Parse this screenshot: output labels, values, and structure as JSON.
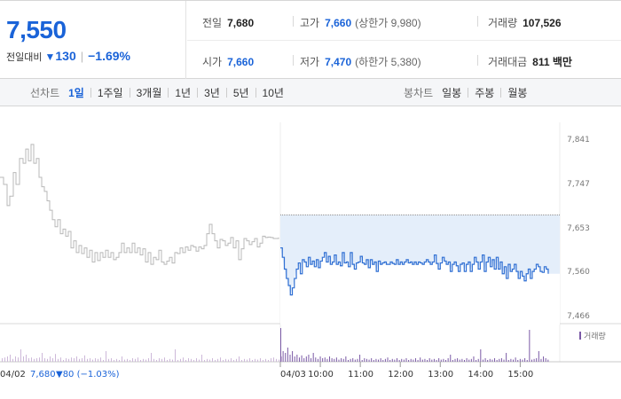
{
  "quote": {
    "price": "7,550",
    "change_label": "전일대비",
    "change_arrow": "▼",
    "change_abs": "130",
    "change_pct": "−1.69%",
    "stats": {
      "prev_close": {
        "label": "전일",
        "value": "7,680"
      },
      "high": {
        "label": "고가",
        "value": "7,660",
        "sub": "(상한가 9,980)"
      },
      "volume": {
        "label": "거래량",
        "value": "107,526"
      },
      "open": {
        "label": "시가",
        "value": "7,660"
      },
      "low": {
        "label": "저가",
        "value": "7,470",
        "sub": "(하한가 5,380)"
      },
      "trade_value": {
        "label": "거래대금",
        "value": "811 백만"
      }
    }
  },
  "tabs": {
    "line_label": "선차트",
    "line_periods": [
      "1일",
      "1주일",
      "3개월",
      "1년",
      "3년",
      "5년",
      "10년"
    ],
    "line_active": "1일",
    "candle_label": "봉차트",
    "candle_periods": [
      "일봉",
      "주봉",
      "월봉"
    ]
  },
  "chart_data": {
    "type": "line",
    "ylim": [
      7466,
      7841
    ],
    "y_ticks": [
      "7,841",
      "7,747",
      "7,653",
      "7,560",
      "7,466"
    ],
    "y_tick_values": [
      7841,
      7747,
      7653,
      7560,
      7466
    ],
    "x_ticks": [
      "04/03",
      "10:00",
      "11:00",
      "12:00",
      "13:00",
      "14:00",
      "15:00"
    ],
    "x_tick_minutes": [
      0,
      60,
      120,
      180,
      240,
      300,
      360
    ],
    "prev_close": 7680,
    "prev_day": {
      "label": "04/02",
      "close_text": "7,680",
      "change_text": "▼80 (−1.03%)",
      "points": [
        [
          0,
          7760
        ],
        [
          4,
          7745
        ],
        [
          8,
          7700
        ],
        [
          11,
          7720
        ],
        [
          15,
          7770
        ],
        [
          18,
          7745
        ],
        [
          22,
          7800
        ],
        [
          26,
          7790
        ],
        [
          29,
          7820
        ],
        [
          32,
          7795
        ],
        [
          35,
          7830
        ],
        [
          38,
          7790
        ],
        [
          41,
          7800
        ],
        [
          44,
          7760
        ],
        [
          47,
          7740
        ],
        [
          50,
          7730
        ],
        [
          53,
          7710
        ],
        [
          56,
          7690
        ],
        [
          59,
          7670
        ],
        [
          62,
          7655
        ],
        [
          65,
          7670
        ],
        [
          68,
          7640
        ],
        [
          71,
          7650
        ],
        [
          74,
          7635
        ],
        [
          77,
          7645
        ],
        [
          80,
          7610
        ],
        [
          83,
          7625
        ],
        [
          86,
          7600
        ],
        [
          89,
          7615
        ],
        [
          92,
          7598
        ],
        [
          95,
          7610
        ],
        [
          98,
          7590
        ],
        [
          101,
          7605
        ],
        [
          104,
          7580
        ],
        [
          107,
          7600
        ],
        [
          110,
          7583
        ],
        [
          113,
          7600
        ],
        [
          116,
          7590
        ],
        [
          119,
          7605
        ],
        [
          122,
          7590
        ],
        [
          125,
          7600
        ],
        [
          128,
          7585
        ],
        [
          131,
          7590
        ],
        [
          134,
          7600
        ],
        [
          137,
          7620
        ],
        [
          140,
          7600
        ],
        [
          143,
          7610
        ],
        [
          146,
          7600
        ],
        [
          149,
          7620
        ],
        [
          152,
          7600
        ],
        [
          155,
          7610
        ],
        [
          158,
          7595
        ],
        [
          161,
          7608
        ],
        [
          164,
          7580
        ],
        [
          167,
          7600
        ],
        [
          170,
          7575
        ],
        [
          173,
          7590
        ],
        [
          176,
          7585
        ],
        [
          179,
          7605
        ],
        [
          182,
          7580
        ],
        [
          185,
          7575
        ],
        [
          188,
          7582
        ],
        [
          191,
          7590
        ],
        [
          194,
          7578
        ],
        [
          197,
          7600
        ],
        [
          200,
          7598
        ],
        [
          203,
          7610
        ],
        [
          206,
          7600
        ],
        [
          209,
          7612
        ],
        [
          212,
          7605
        ],
        [
          215,
          7615
        ],
        [
          218,
          7612
        ],
        [
          221,
          7603
        ],
        [
          224,
          7612
        ],
        [
          227,
          7608
        ],
        [
          230,
          7615
        ],
        [
          233,
          7640
        ],
        [
          236,
          7660
        ],
        [
          239,
          7640
        ],
        [
          242,
          7625
        ],
        [
          245,
          7610
        ],
        [
          248,
          7628
        ],
        [
          251,
          7625
        ],
        [
          254,
          7615
        ],
        [
          257,
          7620
        ],
        [
          260,
          7632
        ],
        [
          263,
          7610
        ],
        [
          266,
          7625
        ],
        [
          269,
          7585
        ],
        [
          272,
          7608
        ],
        [
          275,
          7630
        ],
        [
          278,
          7625
        ],
        [
          281,
          7617
        ],
        [
          284,
          7623
        ],
        [
          287,
          7630
        ],
        [
          290,
          7612
        ],
        [
          293,
          7620
        ],
        [
          296,
          7635
        ],
        [
          299,
          7632
        ],
        [
          302,
          7633
        ],
        [
          305,
          7632
        ],
        [
          308,
          7630
        ],
        [
          311,
          7630
        ],
        [
          314,
          7632
        ]
      ]
    },
    "today_points": [
      [
        0,
        7610
      ],
      [
        3,
        7590
      ],
      [
        6,
        7565
      ],
      [
        9,
        7545
      ],
      [
        12,
        7530
      ],
      [
        15,
        7510
      ],
      [
        18,
        7525
      ],
      [
        21,
        7545
      ],
      [
        24,
        7565
      ],
      [
        27,
        7578
      ],
      [
        30,
        7555
      ],
      [
        33,
        7585
      ],
      [
        36,
        7580
      ],
      [
        39,
        7570
      ],
      [
        42,
        7590
      ],
      [
        45,
        7575
      ],
      [
        48,
        7582
      ],
      [
        51,
        7570
      ],
      [
        54,
        7585
      ],
      [
        57,
        7568
      ],
      [
        60,
        7582
      ],
      [
        63,
        7590
      ],
      [
        66,
        7600
      ],
      [
        69,
        7580
      ],
      [
        72,
        7592
      ],
      [
        75,
        7575
      ],
      [
        78,
        7580
      ],
      [
        81,
        7595
      ],
      [
        84,
        7575
      ],
      [
        87,
        7580
      ],
      [
        90,
        7572
      ],
      [
        93,
        7600
      ],
      [
        96,
        7578
      ],
      [
        99,
        7580
      ],
      [
        102,
        7570
      ],
      [
        105,
        7600
      ],
      [
        108,
        7575
      ],
      [
        111,
        7565
      ],
      [
        114,
        7578
      ],
      [
        117,
        7580
      ],
      [
        120,
        7592
      ],
      [
        123,
        7578
      ],
      [
        126,
        7575
      ],
      [
        129,
        7585
      ],
      [
        132,
        7568
      ],
      [
        135,
        7585
      ],
      [
        138,
        7575
      ],
      [
        141,
        7580
      ],
      [
        144,
        7560
      ],
      [
        147,
        7582
      ],
      [
        150,
        7575
      ],
      [
        153,
        7578
      ],
      [
        156,
        7580
      ],
      [
        159,
        7575
      ],
      [
        162,
        7575
      ],
      [
        165,
        7580
      ],
      [
        168,
        7577
      ],
      [
        171,
        7575
      ],
      [
        174,
        7585
      ],
      [
        177,
        7575
      ],
      [
        180,
        7580
      ],
      [
        183,
        7575
      ],
      [
        186,
        7580
      ],
      [
        189,
        7585
      ],
      [
        192,
        7578
      ],
      [
        195,
        7580
      ],
      [
        198,
        7575
      ],
      [
        201,
        7580
      ],
      [
        204,
        7575
      ],
      [
        207,
        7580
      ],
      [
        210,
        7578
      ],
      [
        213,
        7575
      ],
      [
        216,
        7580
      ],
      [
        219,
        7585
      ],
      [
        222,
        7580
      ],
      [
        225,
        7575
      ],
      [
        228,
        7580
      ],
      [
        231,
        7595
      ],
      [
        234,
        7577
      ],
      [
        237,
        7565
      ],
      [
        240,
        7578
      ],
      [
        243,
        7590
      ],
      [
        246,
        7582
      ],
      [
        249,
        7575
      ],
      [
        252,
        7580
      ],
      [
        255,
        7560
      ],
      [
        258,
        7575
      ],
      [
        261,
        7580
      ],
      [
        264,
        7572
      ],
      [
        267,
        7560
      ],
      [
        270,
        7575
      ],
      [
        273,
        7578
      ],
      [
        276,
        7560
      ],
      [
        279,
        7575
      ],
      [
        282,
        7580
      ],
      [
        285,
        7560
      ],
      [
        288,
        7575
      ],
      [
        291,
        7590
      ],
      [
        294,
        7580
      ],
      [
        297,
        7565
      ],
      [
        300,
        7580
      ],
      [
        303,
        7595
      ],
      [
        306,
        7560
      ],
      [
        309,
        7580
      ],
      [
        312,
        7590
      ],
      [
        315,
        7570
      ],
      [
        318,
        7585
      ],
      [
        321,
        7565
      ],
      [
        324,
        7590
      ],
      [
        327,
        7565
      ],
      [
        330,
        7580
      ],
      [
        333,
        7555
      ],
      [
        336,
        7570
      ],
      [
        339,
        7545
      ],
      [
        342,
        7575
      ],
      [
        345,
        7560
      ],
      [
        348,
        7565
      ],
      [
        351,
        7575
      ],
      [
        354,
        7560
      ],
      [
        357,
        7545
      ],
      [
        360,
        7560
      ],
      [
        363,
        7550
      ],
      [
        366,
        7540
      ],
      [
        369,
        7555
      ],
      [
        372,
        7565
      ],
      [
        375,
        7545
      ],
      [
        378,
        7560
      ],
      [
        381,
        7565
      ],
      [
        384,
        7575
      ],
      [
        387,
        7570
      ],
      [
        390,
        7560
      ],
      [
        393,
        7558
      ],
      [
        396,
        7570
      ],
      [
        399,
        7565
      ],
      [
        402,
        7555
      ]
    ],
    "volume_legend": "거래량",
    "volume_prev_day": [
      0.1,
      0.12,
      0.15,
      0.2,
      0.08,
      0.15,
      0.12,
      0.35,
      0.15,
      0.2,
      0.1,
      0.12,
      0.08,
      0.1,
      0.12,
      0.25,
      0.1,
      0.08,
      0.15,
      0.1,
      0.22,
      0.08,
      0.12,
      0.05,
      0.1,
      0.08,
      0.12,
      0.1,
      0.15,
      0.08,
      0.1,
      0.18,
      0.08,
      0.1,
      0.06,
      0.1,
      0.08,
      0.12,
      0.05,
      0.3,
      0.08,
      0.1,
      0.05,
      0.08,
      0.05,
      0.15,
      0.06,
      0.08,
      0.05,
      0.1,
      0.08,
      0.12,
      0.05,
      0.08,
      0.06,
      0.1,
      0.25,
      0.08,
      0.05,
      0.1,
      0.08,
      0.12,
      0.05,
      0.08,
      0.06,
      0.35,
      0.05,
      0.08,
      0.12,
      0.05,
      0.1,
      0.08,
      0.05,
      0.1,
      0.06,
      0.2,
      0.05,
      0.08,
      0.06,
      0.1,
      0.05,
      0.08,
      0.12,
      0.05,
      0.08,
      0.06,
      0.1,
      0.05,
      0.08,
      0.15,
      0.05,
      0.08,
      0.06,
      0.1,
      0.05,
      0.08,
      0.06,
      0.1,
      0.05,
      0.08,
      0.05,
      0.1,
      0.12,
      0.08,
      0.06,
      0.15
    ],
    "volume_today": [
      0.95,
      0.3,
      0.25,
      0.4,
      0.2,
      0.3,
      0.15,
      0.2,
      0.12,
      0.18,
      0.1,
      0.15,
      0.2,
      0.1,
      0.25,
      0.12,
      0.08,
      0.15,
      0.1,
      0.12,
      0.08,
      0.15,
      0.1,
      0.08,
      0.12,
      0.06,
      0.1,
      0.08,
      0.15,
      0.05,
      0.08,
      0.1,
      0.06,
      0.08,
      0.2,
      0.05,
      0.1,
      0.08,
      0.06,
      0.1,
      0.05,
      0.08,
      0.06,
      0.1,
      0.05,
      0.08,
      0.12,
      0.05,
      0.08,
      0.06,
      0.1,
      0.05,
      0.08,
      0.06,
      0.1,
      0.05,
      0.08,
      0.06,
      0.1,
      0.05,
      0.12,
      0.06,
      0.08,
      0.05,
      0.1,
      0.06,
      0.08,
      0.05,
      0.1,
      0.06,
      0.08,
      0.05,
      0.1,
      0.2,
      0.05,
      0.08,
      0.1,
      0.06,
      0.08,
      0.05,
      0.1,
      0.06,
      0.08,
      0.15,
      0.05,
      0.08,
      0.35,
      0.06,
      0.1,
      0.05,
      0.08,
      0.06,
      0.1,
      0.05,
      0.08,
      0.1,
      0.06,
      0.25,
      0.05,
      0.08,
      0.06,
      0.12,
      0.05,
      0.08,
      0.06,
      0.1,
      0.05,
      0.9,
      0.06,
      0.08,
      0.1,
      0.3,
      0.08,
      0.15,
      0.1,
      0.06
    ]
  },
  "colors": {
    "accent": "#1a63d8",
    "prev_line": "#b8b8b8",
    "today_line": "#2f6fd3",
    "band_fill": "#e4eefa",
    "prev_close_line": "#8a8a8a",
    "volume_prev": "#cdb8d9",
    "volume_today": "#7b5aa6"
  }
}
